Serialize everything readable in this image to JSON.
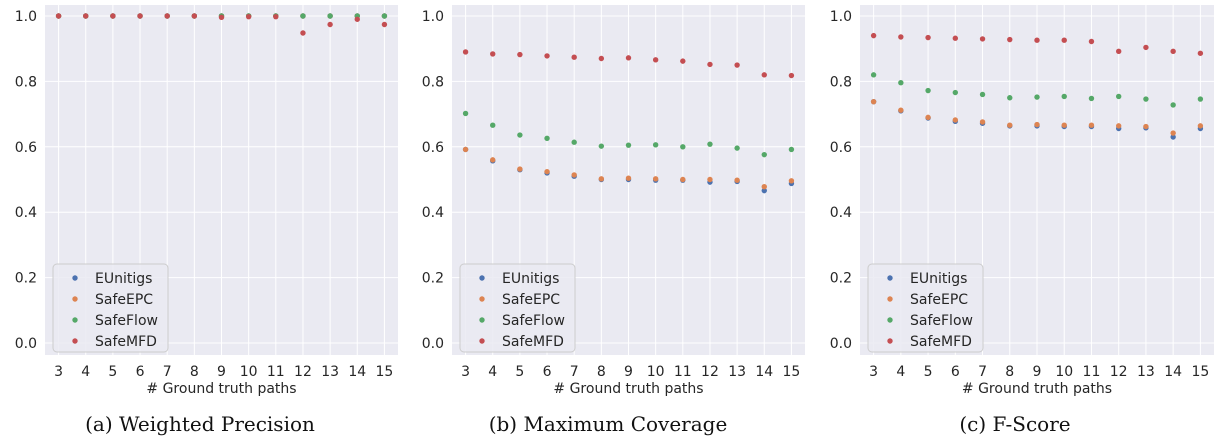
{
  "chart_data": [
    {
      "type": "scatter",
      "caption": "(a) Weighted Precision",
      "xlabel": "# Ground truth paths",
      "ylabel": "",
      "x": [
        3,
        4,
        5,
        6,
        7,
        8,
        9,
        10,
        11,
        12,
        13,
        14,
        15
      ],
      "ylim": [
        -0.05,
        1.05
      ],
      "yticks": [
        "0.0",
        "0.2",
        "0.4",
        "0.6",
        "0.8",
        "1.0"
      ],
      "grid": true,
      "legend_position": "lower-left",
      "series": [
        {
          "name": "EUnitigs",
          "color": "#4c72b0",
          "values": [
            1.0,
            1.0,
            1.0,
            1.0,
            1.0,
            1.0,
            1.0,
            1.0,
            1.0,
            1.0,
            1.0,
            1.0,
            1.0
          ]
        },
        {
          "name": "SafeEPC",
          "color": "#dd8452",
          "values": [
            1.0,
            1.0,
            1.0,
            1.0,
            1.0,
            1.0,
            1.0,
            1.0,
            1.0,
            1.0,
            1.0,
            1.0,
            1.0
          ]
        },
        {
          "name": "SafeFlow",
          "color": "#55a868",
          "values": [
            1.0,
            1.0,
            1.0,
            1.0,
            1.0,
            1.0,
            1.0,
            1.0,
            1.0,
            1.0,
            1.0,
            1.0,
            1.0
          ]
        },
        {
          "name": "SafeMFD",
          "color": "#c44e52",
          "values": [
            1.0,
            1.0,
            1.0,
            1.0,
            1.0,
            1.0,
            0.996,
            0.998,
            0.998,
            0.948,
            0.974,
            0.99,
            0.974
          ]
        }
      ]
    },
    {
      "type": "scatter",
      "caption": "(b) Maximum Coverage",
      "xlabel": "# Ground truth paths",
      "ylabel": "",
      "x": [
        3,
        4,
        5,
        6,
        7,
        8,
        9,
        10,
        11,
        12,
        13,
        14,
        15
      ],
      "ylim": [
        -0.05,
        1.05
      ],
      "yticks": [
        "0.0",
        "0.2",
        "0.4",
        "0.6",
        "0.8",
        "1.0"
      ],
      "grid": true,
      "legend_position": "lower-left",
      "series": [
        {
          "name": "EUnitigs",
          "color": "#4c72b0",
          "values": [
            0.592,
            0.557,
            0.53,
            0.52,
            0.51,
            0.5,
            0.5,
            0.498,
            0.498,
            0.492,
            0.494,
            0.466,
            0.488
          ]
        },
        {
          "name": "SafeEPC",
          "color": "#dd8452",
          "values": [
            0.592,
            0.56,
            0.532,
            0.524,
            0.514,
            0.502,
            0.504,
            0.502,
            0.5,
            0.5,
            0.498,
            0.478,
            0.496
          ]
        },
        {
          "name": "SafeFlow",
          "color": "#55a868",
          "values": [
            0.702,
            0.666,
            0.636,
            0.626,
            0.614,
            0.602,
            0.605,
            0.606,
            0.6,
            0.608,
            0.596,
            0.576,
            0.592
          ]
        },
        {
          "name": "SafeMFD",
          "color": "#c44e52",
          "values": [
            0.89,
            0.884,
            0.882,
            0.878,
            0.874,
            0.87,
            0.872,
            0.866,
            0.862,
            0.852,
            0.85,
            0.82,
            0.818
          ]
        }
      ]
    },
    {
      "type": "scatter",
      "caption": "(c) F-Score",
      "xlabel": "# Ground truth paths",
      "ylabel": "",
      "x": [
        3,
        4,
        5,
        6,
        7,
        8,
        9,
        10,
        11,
        12,
        13,
        14,
        15
      ],
      "ylim": [
        -0.05,
        1.05
      ],
      "yticks": [
        "0.0",
        "0.2",
        "0.4",
        "0.6",
        "0.8",
        "1.0"
      ],
      "grid": true,
      "legend_position": "lower-left",
      "series": [
        {
          "name": "EUnitigs",
          "color": "#4c72b0",
          "values": [
            0.738,
            0.71,
            0.688,
            0.678,
            0.672,
            0.664,
            0.664,
            0.662,
            0.662,
            0.656,
            0.658,
            0.63,
            0.656
          ]
        },
        {
          "name": "SafeEPC",
          "color": "#dd8452",
          "values": [
            0.738,
            0.712,
            0.69,
            0.682,
            0.676,
            0.666,
            0.668,
            0.666,
            0.666,
            0.664,
            0.662,
            0.642,
            0.664
          ]
        },
        {
          "name": "SafeFlow",
          "color": "#55a868",
          "values": [
            0.82,
            0.796,
            0.772,
            0.766,
            0.76,
            0.75,
            0.752,
            0.754,
            0.748,
            0.754,
            0.746,
            0.728,
            0.746
          ]
        },
        {
          "name": "SafeMFD",
          "color": "#c44e52",
          "values": [
            0.94,
            0.936,
            0.934,
            0.932,
            0.93,
            0.928,
            0.926,
            0.926,
            0.922,
            0.892,
            0.904,
            0.892,
            0.886
          ]
        }
      ]
    }
  ]
}
